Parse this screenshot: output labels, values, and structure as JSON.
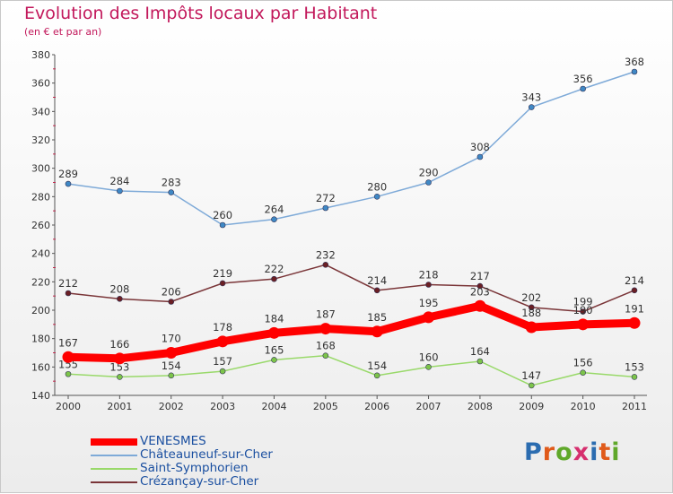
{
  "title": "Evolution des Impôts locaux par Habitant",
  "subtitle": "(en € et par an)",
  "logo": {
    "text": "Proxiti",
    "letter_colors": [
      "#2b6cb0",
      "#e05a1a",
      "#5fa82a",
      "#d62f6e",
      "#2b6cb0",
      "#e05a1a",
      "#5fa82a"
    ]
  },
  "chart_data": {
    "type": "line",
    "title": "Evolution des Impôts locaux par Habitant",
    "subtitle": "(en € et par an)",
    "xlabel": "",
    "ylabel": "",
    "x": [
      2000,
      2001,
      2002,
      2003,
      2004,
      2005,
      2006,
      2007,
      2008,
      2009,
      2010,
      2011
    ],
    "ylim": [
      140,
      380
    ],
    "yticks": [
      140,
      160,
      180,
      200,
      220,
      240,
      260,
      280,
      300,
      320,
      340,
      360,
      380
    ],
    "grid": false,
    "legend_position": "bottom-left",
    "series": [
      {
        "name": "VENESMES",
        "color": "#ff0000",
        "emphasis": true,
        "values": [
          167,
          166,
          170,
          178,
          184,
          187,
          185,
          195,
          203,
          188,
          190,
          191
        ]
      },
      {
        "name": "Châteauneuf-sur-Cher",
        "color": "#7eaad8",
        "point_color": "#3f88c5",
        "values": [
          289,
          284,
          283,
          260,
          264,
          272,
          280,
          290,
          308,
          343,
          356,
          368
        ]
      },
      {
        "name": "Saint-Symphorien",
        "color": "#99d96a",
        "point_color": "#7cc44a",
        "values": [
          155,
          153,
          154,
          157,
          165,
          168,
          154,
          160,
          164,
          147,
          156,
          153
        ]
      },
      {
        "name": "Crézançay-sur-Cher",
        "color": "#7a3538",
        "point_color": "#6b1f24",
        "values": [
          212,
          208,
          206,
          219,
          222,
          232,
          214,
          218,
          217,
          202,
          199,
          214
        ]
      }
    ]
  }
}
